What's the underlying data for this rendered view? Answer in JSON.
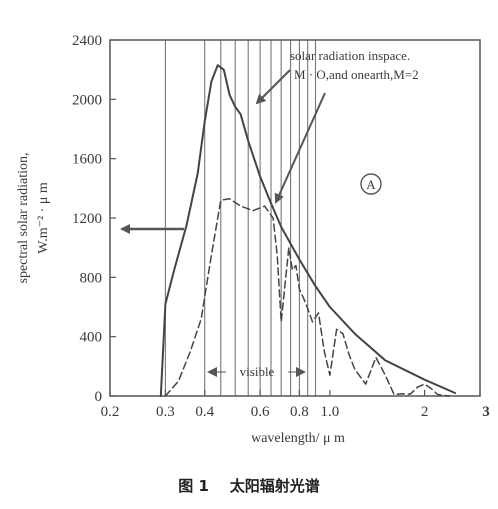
{
  "chart_data": {
    "type": "line",
    "caption": "图 1    太阳辐射光谱",
    "xlabel": "wavelength/ μ m",
    "ylabel_line1": "spectral solar radiation,",
    "ylabel_line2": "W.m⁻² · μ m",
    "xscale": "log",
    "xlim": [
      0.2,
      3
    ],
    "ylim": [
      0,
      2400
    ],
    "x_ticks": [
      {
        "value": 0.2,
        "label": "0.2"
      },
      {
        "value": 0.3,
        "label": "0.3"
      },
      {
        "value": 0.4,
        "label": "0.4"
      },
      {
        "value": 0.6,
        "label": "0.6"
      },
      {
        "value": 0.8,
        "label": "0.8"
      },
      {
        "value": 1.0,
        "label": "1.0"
      },
      {
        "value": 2,
        "label": "2"
      },
      {
        "value": 3,
        "label": "3"
      }
    ],
    "y_ticks": [
      {
        "value": 0,
        "label": "0"
      },
      {
        "value": 400,
        "label": "400"
      },
      {
        "value": 800,
        "label": "800"
      },
      {
        "value": 1200,
        "label": "1200"
      },
      {
        "value": 1600,
        "label": "1600"
      },
      {
        "value": 2000,
        "label": "2000"
      },
      {
        "value": 2400,
        "label": "2400"
      }
    ],
    "vertical_lines_x": [
      0.3,
      0.4,
      0.45,
      0.5,
      0.55,
      0.6,
      0.65,
      0.7,
      0.75,
      0.8,
      0.85,
      0.9
    ],
    "series": [
      {
        "style": "solid",
        "x": [
          0.29,
          0.3,
          0.32,
          0.35,
          0.38,
          0.4,
          0.42,
          0.44,
          0.46,
          0.48,
          0.5,
          0.52,
          0.55,
          0.6,
          0.65,
          0.7,
          0.8,
          0.9,
          1.0,
          1.2,
          1.5,
          2.0,
          2.5
        ],
        "y": [
          0,
          620,
          850,
          1150,
          1500,
          1850,
          2120,
          2230,
          2200,
          2030,
          1950,
          1900,
          1720,
          1480,
          1300,
          1140,
          920,
          740,
          600,
          420,
          240,
          110,
          20
        ]
      },
      {
        "style": "dashed",
        "x": [
          0.3,
          0.33,
          0.36,
          0.39,
          0.42,
          0.45,
          0.48,
          0.52,
          0.57,
          0.62,
          0.66,
          0.68,
          0.7,
          0.72,
          0.74,
          0.76,
          0.78,
          0.8,
          0.84,
          0.88,
          0.92,
          0.96,
          1.0,
          1.05,
          1.1,
          1.15,
          1.2,
          1.3,
          1.4,
          1.5,
          1.6,
          1.7,
          1.8,
          1.9,
          2.0,
          2.1,
          2.2,
          2.4
        ],
        "y": [
          0,
          100,
          300,
          520,
          950,
          1320,
          1330,
          1280,
          1250,
          1280,
          1200,
          950,
          500,
          750,
          1000,
          850,
          880,
          720,
          620,
          500,
          560,
          300,
          140,
          450,
          420,
          280,
          180,
          80,
          260,
          140,
          10,
          15,
          12,
          60,
          80,
          50,
          10,
          0
        ]
      }
    ],
    "annotations": {
      "inspace_line1": "solar radiation inspace.",
      "inspace_line2": "M · O,and onearth,M=2",
      "circle_label": "A",
      "visible_label": "visible"
    }
  }
}
